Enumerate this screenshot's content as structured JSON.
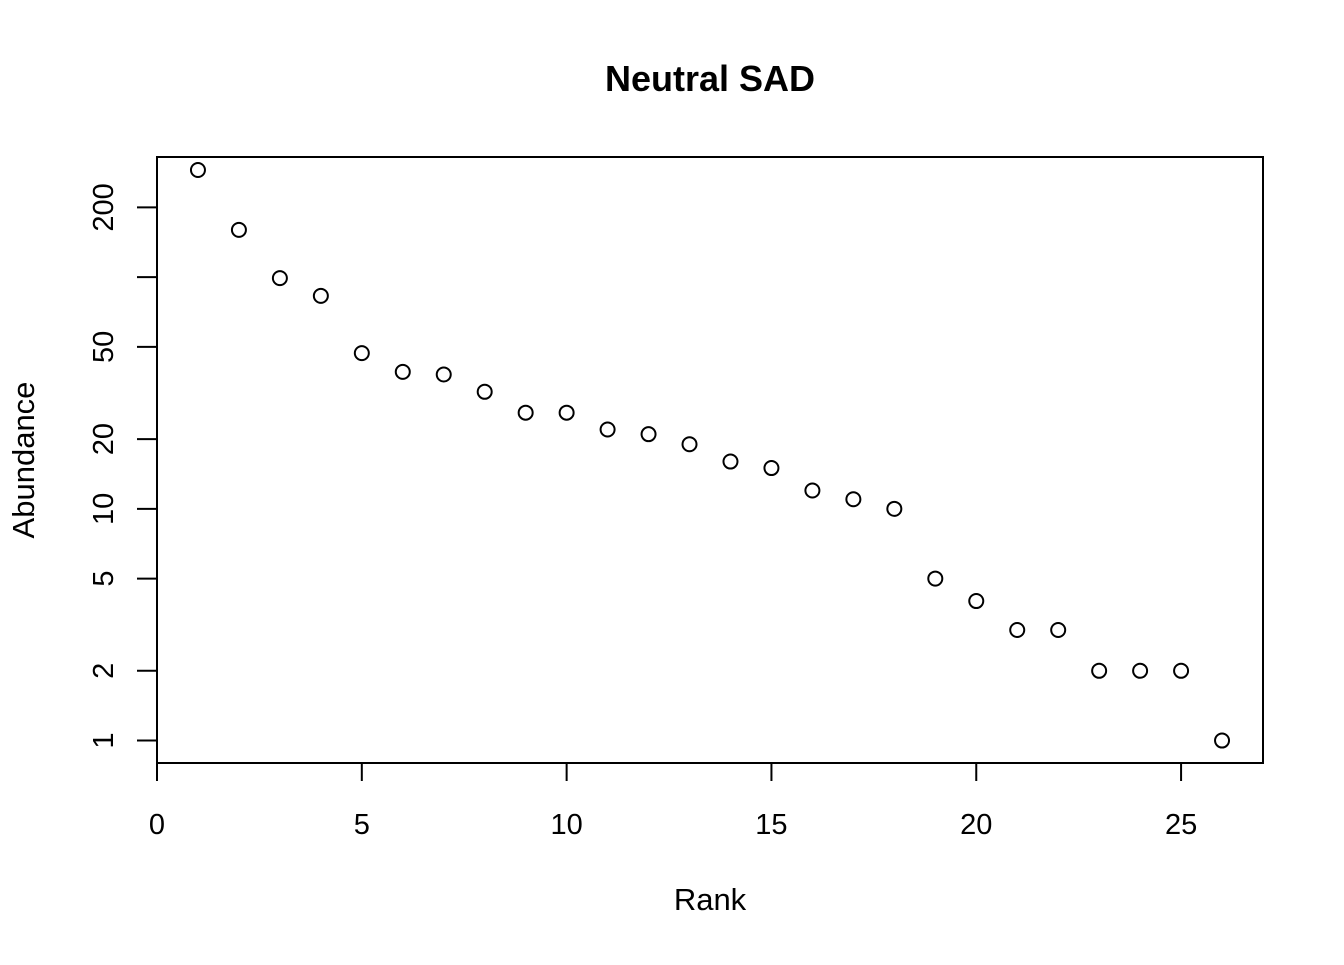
{
  "chart_data": {
    "type": "scatter",
    "title": "Neutral SAD",
    "xlabel": "Rank",
    "ylabel": "Abundance",
    "x_scale": "linear",
    "y_scale": "log",
    "xlim": [
      0,
      27
    ],
    "ylim": [
      0.8,
      330
    ],
    "x_ticks": [
      0,
      5,
      10,
      15,
      20,
      25
    ],
    "y_ticks": [
      1,
      2,
      5,
      10,
      20,
      50,
      100,
      200
    ],
    "y_tick_labels": [
      "1",
      "2",
      "5",
      "10",
      "20",
      "50",
      "",
      "200"
    ],
    "grid": false,
    "legend": false,
    "marker": "open-circle",
    "series": [
      {
        "x": [
          1,
          2,
          3,
          4,
          5,
          6,
          7,
          8,
          9,
          10,
          11,
          12,
          13,
          14,
          15,
          16,
          17,
          18,
          19,
          20,
          21,
          22,
          23,
          24,
          25,
          26
        ],
        "y": [
          290,
          160,
          99,
          83,
          47,
          39,
          38,
          32,
          26,
          26,
          22,
          21,
          19,
          16,
          15,
          12,
          11,
          10,
          5,
          4,
          3,
          3,
          2,
          2,
          2,
          1
        ]
      }
    ]
  }
}
